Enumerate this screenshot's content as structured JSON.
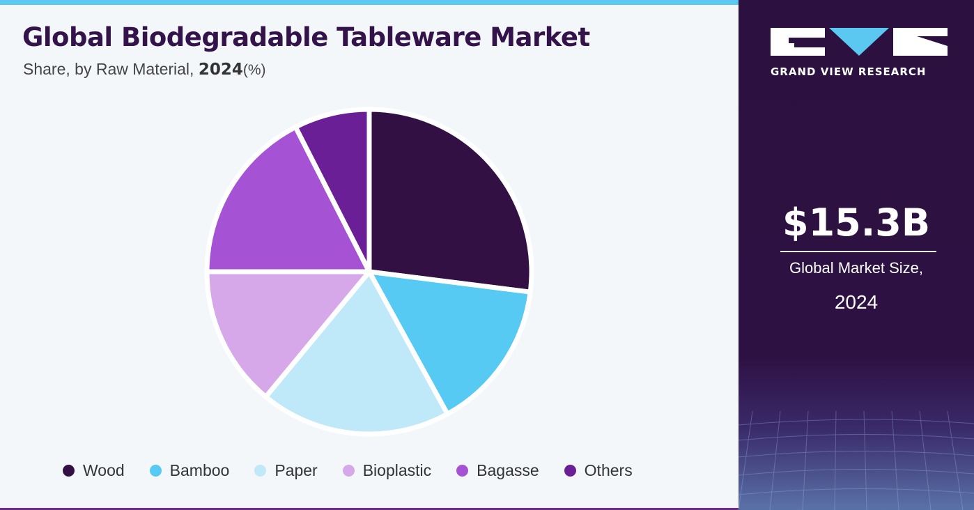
{
  "header": {
    "title": "Global Biodegradable Tableware Market",
    "subtitle_prefix": "Share, by Raw Material, ",
    "subtitle_year": "2024",
    "subtitle_unit": "(%)"
  },
  "brand": {
    "name": "GRAND VIEW RESEARCH"
  },
  "highlight": {
    "value": "$15.3B",
    "label": "Global Market Size,",
    "year": "2024"
  },
  "colors": {
    "wood": "#331043",
    "bamboo": "#56caf3",
    "paper": "#bfe9f9",
    "bioplastic": "#d6a8ea",
    "bagasse": "#a553d4",
    "others": "#6a1f96",
    "panel_dark": "#2c1140",
    "accent": "#5bc8f2"
  },
  "chart_data": {
    "type": "pie",
    "title": "Global Biodegradable Tableware Market",
    "subtitle": "Share, by Raw Material, 2024(%)",
    "categories": [
      "Wood",
      "Bamboo",
      "Paper",
      "Bioplastic",
      "Bagasse",
      "Others"
    ],
    "values": [
      27.0,
      15.0,
      19.0,
      14.0,
      17.5,
      7.5
    ],
    "colors": [
      "#331043",
      "#56caf3",
      "#bfe9f9",
      "#d6a8ea",
      "#a553d4",
      "#6a1f96"
    ],
    "legend_position": "bottom",
    "start_angle": "top",
    "direction": "clockwise"
  }
}
